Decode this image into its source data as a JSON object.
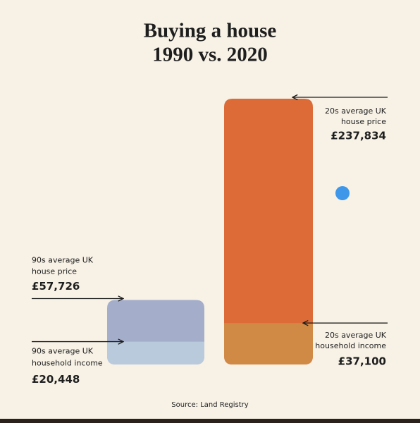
{
  "chart_data": {
    "type": "bar",
    "title": [
      "Buying a house",
      "1990 vs. 2020"
    ],
    "source": "Source: Land Registry",
    "groups": [
      {
        "segments": [
          {
            "label": [
              "90s average UK",
              "house price"
            ],
            "value": 57726,
            "value_label": "£57,726",
            "color": "#a4aecb"
          },
          {
            "label": [
              "90s average UK",
              "household income"
            ],
            "value": 20448,
            "value_label": "£20,448",
            "color": "#b9cadd"
          }
        ]
      },
      {
        "segments": [
          {
            "label": [
              "20s average UK",
              "house price"
            ],
            "value": 237834,
            "value_label": "£237,834",
            "color": "#dc6b37"
          },
          {
            "label": [
              "20s average UK",
              "household income"
            ],
            "value": 37100,
            "value_label": "£37,100",
            "color": "#d18a46"
          }
        ]
      }
    ]
  }
}
